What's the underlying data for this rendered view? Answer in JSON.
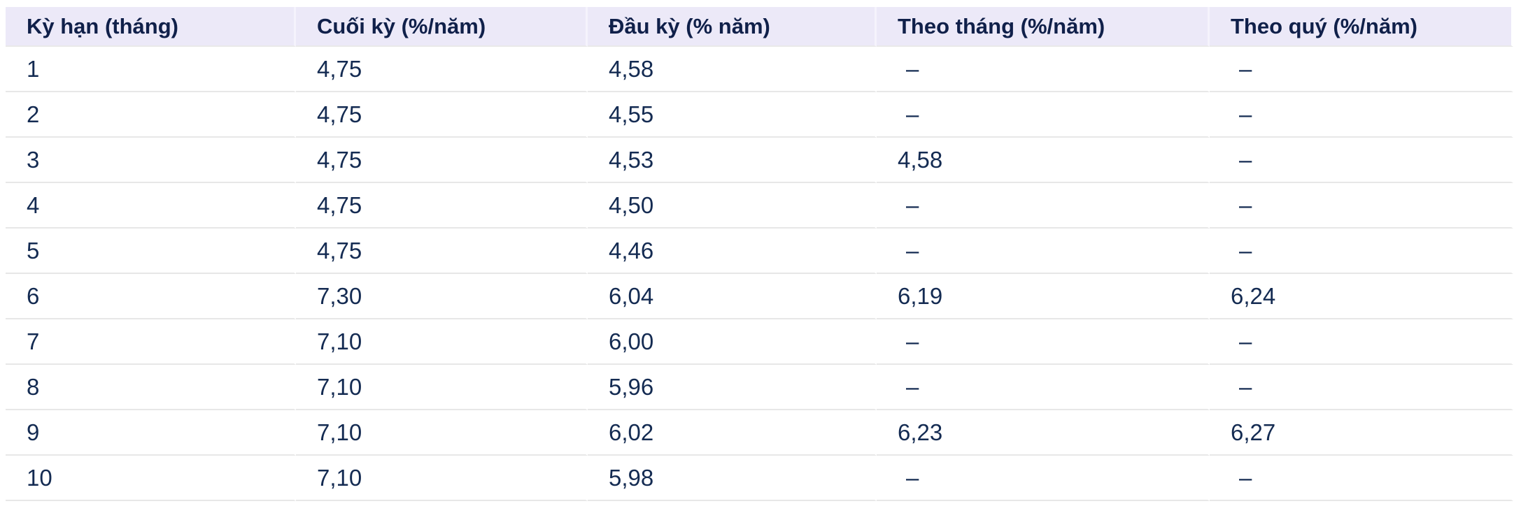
{
  "table": {
    "name": "interest-rates-table",
    "columns": [
      {
        "key": "term",
        "label": "Kỳ hạn (tháng)"
      },
      {
        "key": "end",
        "label": "Cuối kỳ (%/năm)"
      },
      {
        "key": "start",
        "label": "Đầu kỳ (% năm)"
      },
      {
        "key": "monthly",
        "label": "Theo tháng (%/năm)"
      },
      {
        "key": "quarterly",
        "label": "Theo quý (%/năm)"
      }
    ],
    "rows": [
      [
        "1",
        "4,75",
        "4,58",
        "–",
        "–"
      ],
      [
        "2",
        "4,75",
        "4,55",
        "–",
        "–"
      ],
      [
        "3",
        "4,75",
        "4,53",
        "4,58",
        "–"
      ],
      [
        "4",
        "4,75",
        "4,50",
        "–",
        "–"
      ],
      [
        "5",
        "4,75",
        "4,46",
        "–",
        "–"
      ],
      [
        "6",
        "7,30",
        "6,04",
        "6,19",
        "6,24"
      ],
      [
        "7",
        "7,10",
        "6,00",
        "–",
        "–"
      ],
      [
        "8",
        "7,10",
        "5,96",
        "–",
        "–"
      ],
      [
        "9",
        "7,10",
        "6,02",
        "6,23",
        "6,27"
      ],
      [
        "10",
        "7,10",
        "5,98",
        "–",
        "–"
      ]
    ],
    "dash_placeholder": "–"
  },
  "colors": {
    "header_background": "#ece9f8",
    "header_text": "#10204a",
    "cell_text": "#142b52",
    "row_border": "#e7e7e7",
    "page_background": "#ffffff"
  }
}
